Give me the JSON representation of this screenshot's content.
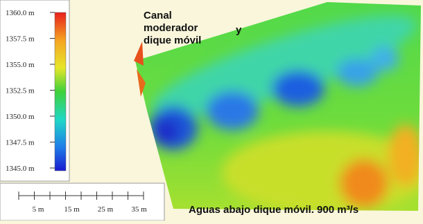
{
  "colorbar": {
    "ticks": [
      "1360.0 m",
      "1357.5 m",
      "1355.0 m",
      "1352.5 m",
      "1350.0 m",
      "1347.5 m",
      "1345.0 m"
    ]
  },
  "scale_bar": {
    "labels": [
      "5 m",
      "15 m",
      "25 m",
      "35 m"
    ]
  },
  "annotations": {
    "canal": [
      "Canal",
      "moderador",
      "dique móvil"
    ],
    "y": "y",
    "caption": "Aguas abajo dique móvil. 900 m³/s"
  }
}
